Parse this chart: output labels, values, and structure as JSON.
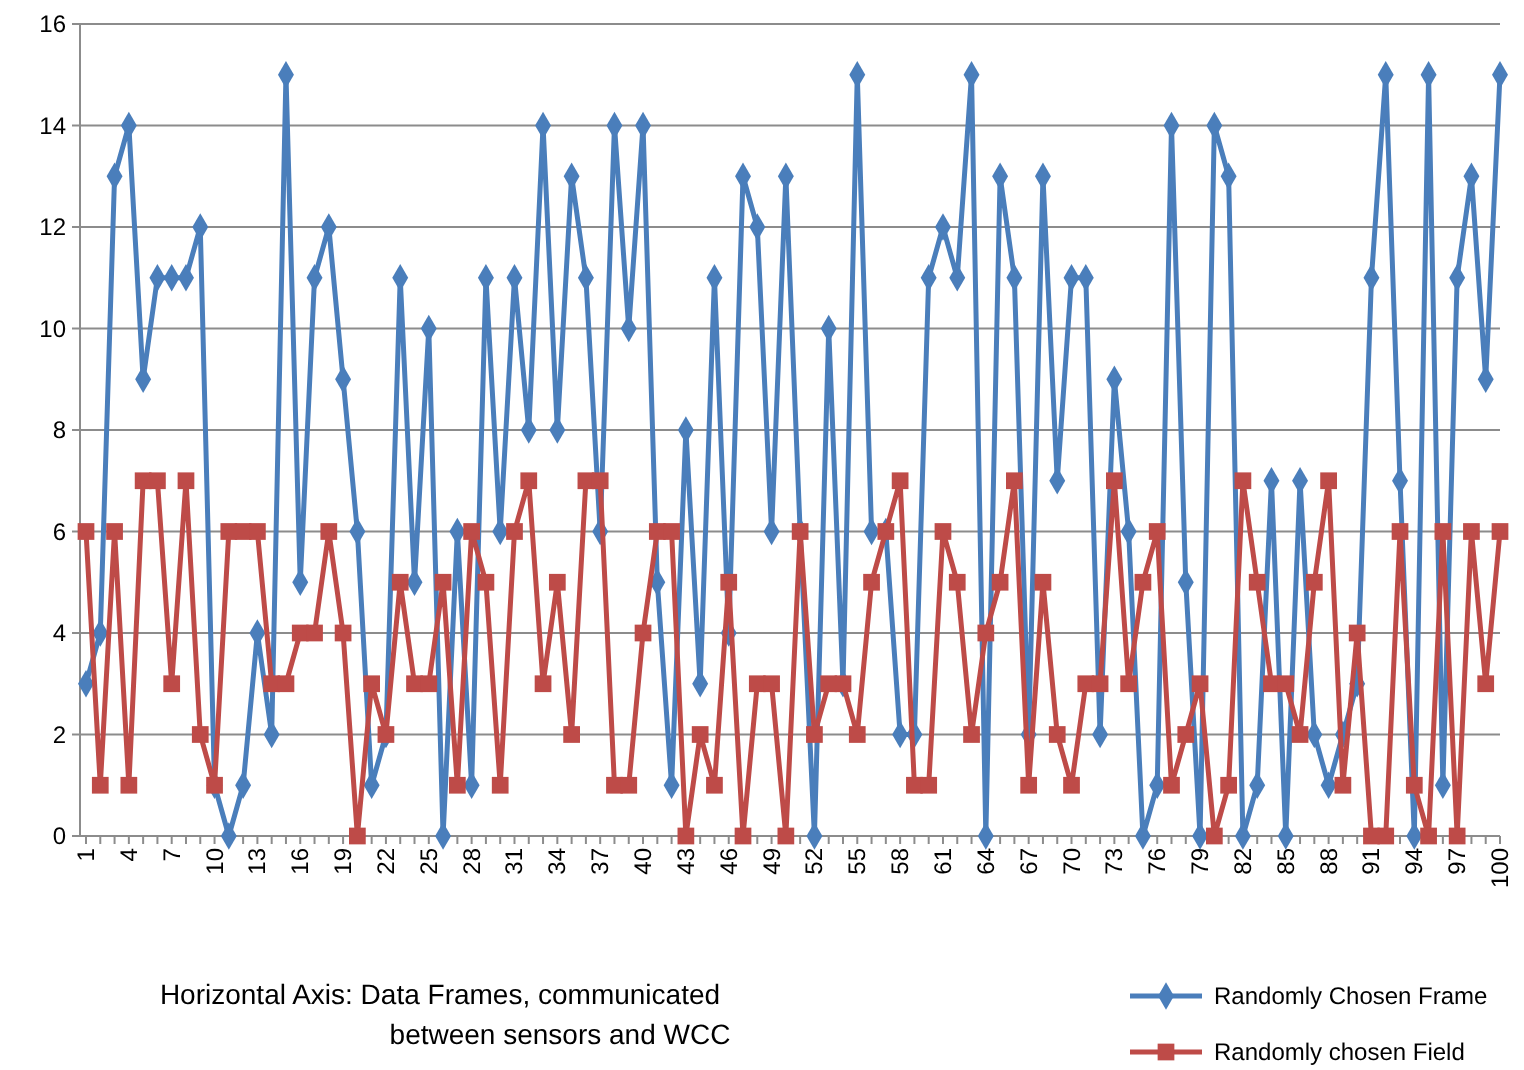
{
  "chart_data": {
    "type": "line",
    "categories": [
      "1",
      null,
      null,
      "4",
      null,
      null,
      "7",
      null,
      null,
      "10",
      null,
      null,
      "13",
      null,
      null,
      "16",
      null,
      null,
      "19",
      null,
      null,
      "22",
      null,
      null,
      "25",
      null,
      null,
      "28",
      null,
      null,
      "31",
      null,
      null,
      "34",
      null,
      null,
      "37",
      null,
      null,
      "40",
      null,
      null,
      "43",
      null,
      null,
      "46",
      null,
      null,
      "49",
      null,
      null,
      "52",
      null,
      null,
      "55",
      null,
      null,
      "58",
      null,
      null,
      "61",
      null,
      null,
      "64",
      null,
      null,
      "67",
      null,
      null,
      "70",
      null,
      null,
      "73",
      null,
      null,
      "76",
      null,
      null,
      "79",
      null,
      null,
      "82",
      null,
      null,
      "85",
      null,
      null,
      "88",
      null,
      null,
      "91",
      null,
      null,
      "94",
      null,
      null,
      "97",
      null,
      null,
      "100"
    ],
    "series": [
      {
        "name": "Randomly Chosen Frame",
        "color": "#4a7ebb",
        "marker": "diamond",
        "values": [
          3,
          4,
          13,
          14,
          9,
          11,
          11,
          11,
          12,
          1,
          0,
          1,
          4,
          2,
          15,
          5,
          11,
          12,
          9,
          6,
          1,
          2,
          11,
          5,
          10,
          0,
          6,
          1,
          11,
          6,
          11,
          8,
          14,
          8,
          13,
          11,
          6,
          14,
          10,
          14,
          5,
          1,
          8,
          3,
          11,
          4,
          13,
          12,
          6,
          13,
          6,
          0,
          10,
          3,
          15,
          6,
          6,
          2,
          2,
          11,
          12,
          11,
          15,
          0,
          13,
          11,
          2,
          13,
          7,
          11,
          11,
          2,
          9,
          6,
          0,
          1,
          14,
          5,
          0,
          14,
          13,
          0,
          1,
          7,
          0,
          7,
          2,
          1,
          2,
          3,
          11,
          15,
          7,
          0,
          15,
          1,
          11,
          13,
          9,
          15
        ]
      },
      {
        "name": "Randomly chosen Field",
        "color": "#be4b48",
        "marker": "square",
        "values": [
          6,
          1,
          6,
          1,
          7,
          7,
          3,
          7,
          2,
          1,
          6,
          6,
          6,
          3,
          3,
          4,
          4,
          6,
          4,
          0,
          3,
          2,
          5,
          3,
          3,
          5,
          1,
          6,
          5,
          1,
          6,
          7,
          3,
          5,
          2,
          7,
          7,
          1,
          1,
          4,
          6,
          6,
          0,
          2,
          1,
          5,
          0,
          3,
          3,
          0,
          6,
          2,
          3,
          3,
          2,
          5,
          6,
          7,
          1,
          1,
          6,
          5,
          2,
          4,
          5,
          7,
          1,
          5,
          2,
          1,
          3,
          3,
          7,
          3,
          5,
          6,
          1,
          2,
          3,
          0,
          1,
          7,
          5,
          3,
          3,
          2,
          5,
          7,
          1,
          4,
          0,
          0,
          6,
          1,
          0,
          6,
          0,
          6,
          3,
          6
        ]
      }
    ],
    "ylim": [
      0,
      16
    ],
    "yticks": [
      0,
      2,
      4,
      6,
      8,
      10,
      12,
      14,
      16
    ],
    "grid": "y",
    "legend": "bottom right",
    "line_style": "solid",
    "annotations": [
      "Horizontal Axis: Data Frames, communicated between sensors and WCC"
    ]
  }
}
